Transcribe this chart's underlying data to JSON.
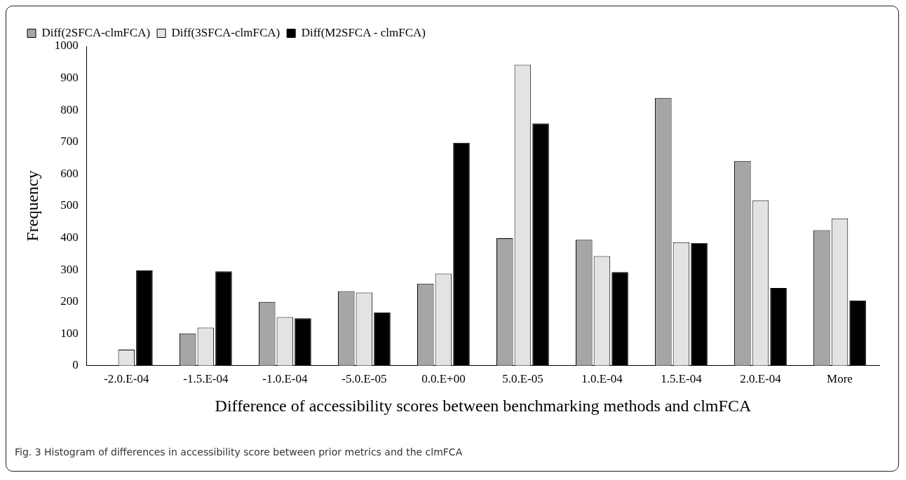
{
  "chart_data": {
    "type": "bar",
    "xlabel": "Difference of accessibility scores between benchmarking methods and clmFCA",
    "ylabel": "Frequency",
    "categories": [
      "-2.0.E-04",
      "-1.5.E-04",
      "-1.0.E-04",
      "-5.0.E-05",
      "0.0.E+00",
      "5.0.E-05",
      "1.0.E-04",
      "1.5.E-04",
      "2.0.E-04",
      "More"
    ],
    "series": [
      {
        "name": "Diff(2SFCA-clmFCA)",
        "color": "#a6a6a6",
        "values": [
          0,
          101,
          200,
          233,
          257,
          399,
          394,
          838,
          641,
          424
        ]
      },
      {
        "name": "Diff(3SFCA-clmFCA)",
        "color": "#e3e3e3",
        "values": [
          50,
          119,
          152,
          229,
          288,
          942,
          343,
          386,
          517,
          461
        ]
      },
      {
        "name": "Diff(M2SFCA - clmFCA)",
        "color": "#000000",
        "values": [
          298,
          295,
          148,
          167,
          698,
          758,
          293,
          384,
          243,
          204
        ]
      }
    ],
    "ylim": [
      0,
      1000
    ],
    "yticks": [
      0,
      100,
      200,
      300,
      400,
      500,
      600,
      700,
      800,
      900,
      1000
    ],
    "grid": false,
    "legend": "top left",
    "annotations": [
      "Fig. 3 Histogram of differences in accessibility score between prior metrics and the clmFCA"
    ]
  }
}
